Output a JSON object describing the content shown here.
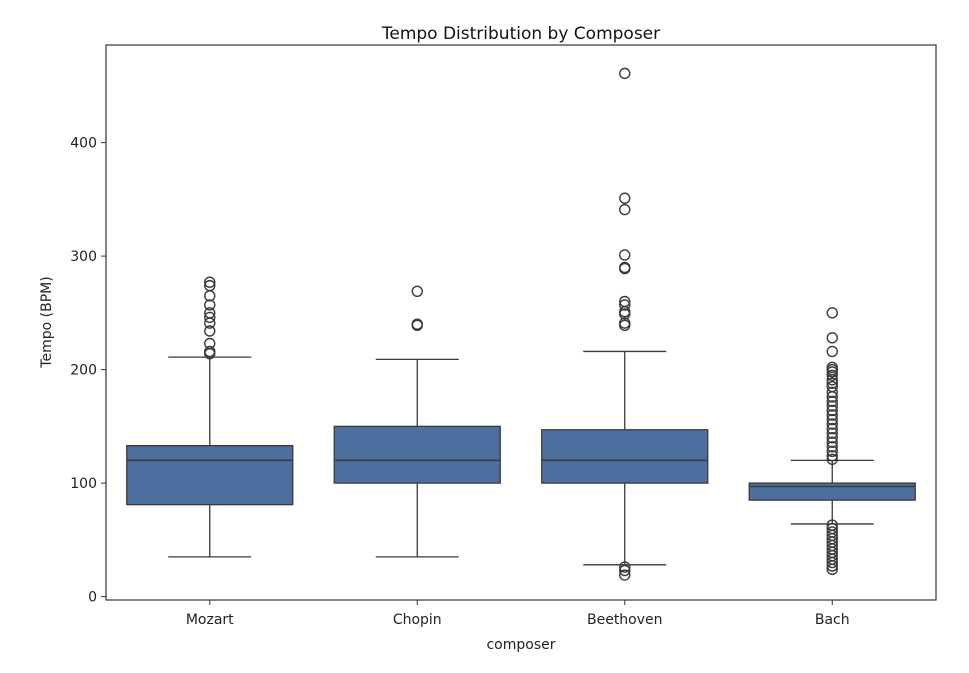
{
  "chart_data": {
    "type": "box",
    "title": "Tempo Distribution by Composer",
    "xlabel": "composer",
    "ylabel": "Tempo (BPM)",
    "ylim": [
      -3,
      486
    ],
    "yticks": [
      0,
      100,
      200,
      300,
      400
    ],
    "grid": false,
    "colors": {
      "box": "#4c6f9f",
      "edge": "#3a3a3a"
    },
    "categories": [
      "Mozart",
      "Chopin",
      "Beethoven",
      "Bach"
    ],
    "boxes": [
      {
        "name": "Mozart",
        "whisker_low": 35,
        "q1": 81,
        "median": 120,
        "q3": 133,
        "whisker_high": 211,
        "outliers": [
          277,
          274,
          265,
          257,
          250,
          246,
          241,
          234,
          223,
          216,
          214
        ]
      },
      {
        "name": "Chopin",
        "whisker_low": 35,
        "q1": 100,
        "median": 120,
        "q3": 150,
        "whisker_high": 209,
        "outliers": [
          269,
          240,
          239
        ]
      },
      {
        "name": "Beethoven",
        "whisker_low": 28,
        "q1": 100,
        "median": 120,
        "q3": 147,
        "whisker_high": 216,
        "outliers": [
          461,
          351,
          341,
          301,
          290,
          289,
          260,
          257,
          251,
          249,
          241,
          239,
          26,
          23,
          19
        ]
      },
      {
        "name": "Bach",
        "whisker_low": 64,
        "q1": 85,
        "median": 97,
        "q3": 100,
        "whisker_high": 120,
        "outliers": [
          250,
          228,
          216,
          202,
          200,
          198,
          195,
          191,
          188,
          185,
          180,
          176,
          172,
          168,
          164,
          160,
          156,
          152,
          148,
          144,
          140,
          136,
          132,
          128,
          124,
          121,
          63,
          60,
          57,
          54,
          51,
          48,
          45,
          42,
          39,
          36,
          33,
          30,
          27,
          24
        ]
      }
    ]
  }
}
